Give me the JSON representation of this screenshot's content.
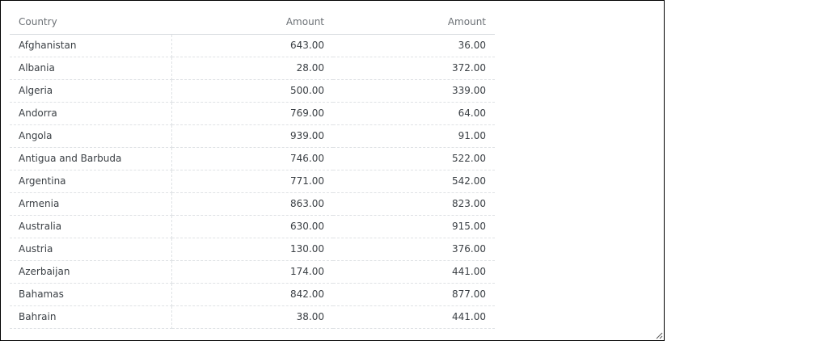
{
  "table": {
    "headers": [
      "Country",
      "Amount",
      "Amount"
    ],
    "rows": [
      [
        "Afghanistan",
        "643.00",
        "36.00"
      ],
      [
        "Albania",
        "28.00",
        "372.00"
      ],
      [
        "Algeria",
        "500.00",
        "339.00"
      ],
      [
        "Andorra",
        "769.00",
        "64.00"
      ],
      [
        "Angola",
        "939.00",
        "91.00"
      ],
      [
        "Antigua and Barbuda",
        "746.00",
        "522.00"
      ],
      [
        "Argentina",
        "771.00",
        "542.00"
      ],
      [
        "Armenia",
        "863.00",
        "823.00"
      ],
      [
        "Australia",
        "630.00",
        "915.00"
      ],
      [
        "Austria",
        "130.00",
        "376.00"
      ],
      [
        "Azerbaijan",
        "174.00",
        "441.00"
      ],
      [
        "Bahamas",
        "842.00",
        "877.00"
      ],
      [
        "Bahrain",
        "38.00",
        "441.00"
      ]
    ]
  }
}
